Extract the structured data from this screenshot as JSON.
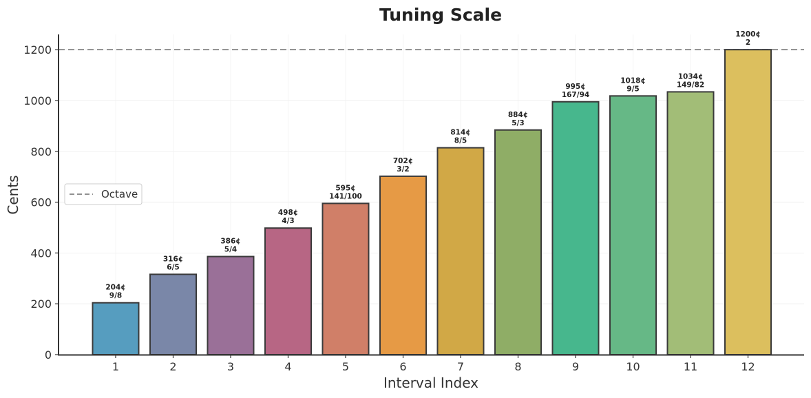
{
  "chart_data": {
    "type": "bar",
    "title": "Tuning Scale",
    "xlabel": "Interval Index",
    "ylabel": "Cents",
    "categories": [
      "1",
      "2",
      "3",
      "4",
      "5",
      "6",
      "7",
      "8",
      "9",
      "10",
      "11",
      "12"
    ],
    "values": [
      204,
      316,
      386,
      498,
      595,
      702,
      814,
      884,
      995,
      1018,
      1034,
      1200
    ],
    "bar_labels": [
      [
        "204¢",
        "9/8"
      ],
      [
        "316¢",
        "6/5"
      ],
      [
        "386¢",
        "5/4"
      ],
      [
        "498¢",
        "4/3"
      ],
      [
        "595¢",
        "141/100"
      ],
      [
        "702¢",
        "3/2"
      ],
      [
        "814¢",
        "8/5"
      ],
      [
        "884¢",
        "5/3"
      ],
      [
        "995¢",
        "167/94"
      ],
      [
        "1018¢",
        "9/5"
      ],
      [
        "1034¢",
        "149/82"
      ],
      [
        "1200¢",
        "2"
      ]
    ],
    "colors": [
      "#569dbf",
      "#7a87a8",
      "#9a7098",
      "#b76684",
      "#d07f68",
      "#e69a45",
      "#d1a846",
      "#8fad66",
      "#47b78d",
      "#66b886",
      "#a2bd77",
      "#dcbf5e"
    ],
    "yticks": [
      0,
      200,
      400,
      600,
      800,
      1000,
      1200
    ],
    "ylim": [
      0,
      1260
    ],
    "reference_line": {
      "value": 1200,
      "label": "Octave",
      "color": "#808080",
      "style": "dashed"
    },
    "legend": {
      "placement": "center-left",
      "entries": [
        "Octave"
      ]
    },
    "grid": true
  }
}
